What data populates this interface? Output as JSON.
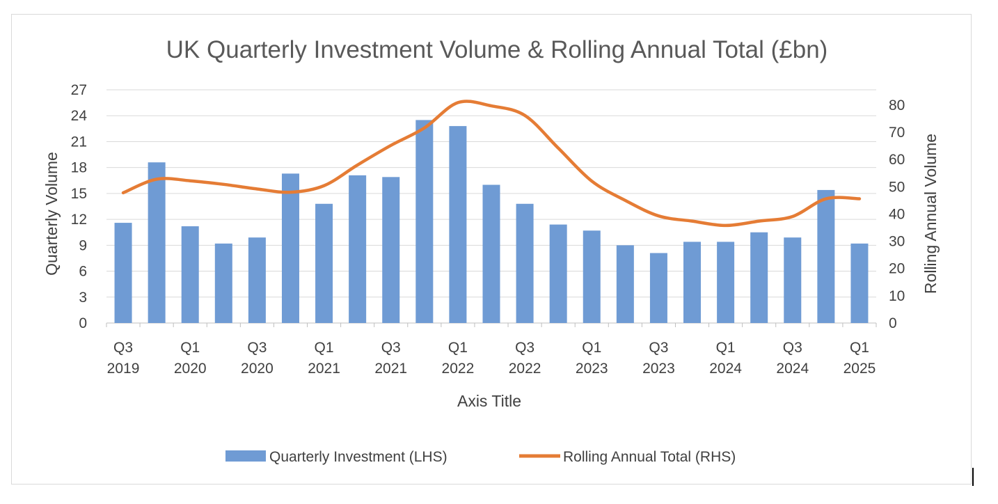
{
  "chart_data": {
    "type": "bar+line",
    "title": "UK Quarterly Investment Volume & Rolling Annual Total (£bn)",
    "xlabel": "Axis Title",
    "ylabel_left": "Quarterly Volume",
    "ylabel_right": "Rolling Annual Volume",
    "categories": [
      "Q3 2019",
      "Q4 2019",
      "Q1 2020",
      "Q2 2020",
      "Q3 2020",
      "Q4 2020",
      "Q1 2021",
      "Q2 2021",
      "Q3 2021",
      "Q4 2021",
      "Q1 2022",
      "Q2 2022",
      "Q3 2022",
      "Q4 2022",
      "Q1 2023",
      "Q2 2023",
      "Q3 2023",
      "Q4 2023",
      "Q1 2024",
      "Q2 2024",
      "Q3 2024",
      "Q4 2024",
      "Q1 2025"
    ],
    "tick_labels": [
      {
        "index": 0,
        "top": "Q3",
        "bottom": "2019"
      },
      {
        "index": 2,
        "top": "Q1",
        "bottom": "2020"
      },
      {
        "index": 4,
        "top": "Q3",
        "bottom": "2020"
      },
      {
        "index": 6,
        "top": "Q1",
        "bottom": "2021"
      },
      {
        "index": 8,
        "top": "Q3",
        "bottom": "2021"
      },
      {
        "index": 10,
        "top": "Q1",
        "bottom": "2022"
      },
      {
        "index": 12,
        "top": "Q3",
        "bottom": "2022"
      },
      {
        "index": 14,
        "top": "Q1",
        "bottom": "2023"
      },
      {
        "index": 16,
        "top": "Q3",
        "bottom": "2023"
      },
      {
        "index": 18,
        "top": "Q1",
        "bottom": "2024"
      },
      {
        "index": 20,
        "top": "Q3",
        "bottom": "2024"
      },
      {
        "index": 22,
        "top": "Q1",
        "bottom": "2025"
      }
    ],
    "series": [
      {
        "name": "Quarterly Investment (LHS)",
        "type": "bar",
        "axis": "left",
        "color": "#6f9bd4",
        "values": [
          11.6,
          18.6,
          11.2,
          9.2,
          9.9,
          17.3,
          13.8,
          17.1,
          16.9,
          23.5,
          22.8,
          16.0,
          13.8,
          11.4,
          10.7,
          9.0,
          8.1,
          9.4,
          9.4,
          10.5,
          9.9,
          15.4,
          9.2
        ]
      },
      {
        "name": "Rolling Annual Total (RHS)",
        "type": "line",
        "axis": "right",
        "color": "#e57c35",
        "values": [
          47.8,
          52.8,
          52.2,
          50.9,
          49.2,
          48.0,
          50.4,
          58.0,
          65.2,
          71.6,
          80.9,
          79.7,
          76.2,
          64.2,
          52.1,
          45.0,
          39.3,
          37.4,
          35.8,
          37.4,
          39.1,
          45.6,
          45.6
        ]
      }
    ],
    "y_left": {
      "min": 0,
      "max": 27,
      "ticks": [
        0,
        3,
        6,
        9,
        12,
        15,
        18,
        21,
        24,
        27
      ]
    },
    "y_right": {
      "min": 0,
      "max": 85.6,
      "ticks": [
        0,
        10,
        20,
        30,
        40,
        50,
        60,
        70,
        80
      ]
    },
    "grid": true,
    "legend_position": "bottom"
  }
}
